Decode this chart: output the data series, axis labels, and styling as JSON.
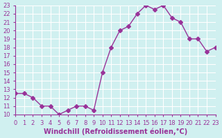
{
  "x": [
    0,
    1,
    2,
    3,
    4,
    5,
    6,
    7,
    8,
    9,
    10,
    11,
    12,
    13,
    14,
    15,
    16,
    17,
    18,
    19,
    20,
    21,
    22,
    23
  ],
  "y": [
    12.5,
    12.5,
    12.0,
    11.0,
    11.0,
    10.0,
    10.5,
    11.0,
    11.0,
    10.5,
    15.0,
    18.0,
    20.0,
    20.5,
    22.0,
    23.0,
    22.5,
    23.0,
    21.5,
    21.0,
    19.0,
    19.0,
    17.5,
    18.0
  ],
  "line_color": "#993399",
  "marker": "D",
  "marker_size": 3,
  "bg_color": "#d0f0f0",
  "grid_color": "#ffffff",
  "xlabel": "Windchill (Refroidissement éolien,°C)",
  "ylim": [
    10,
    23
  ],
  "xlim": [
    0,
    23
  ],
  "yticks": [
    10,
    11,
    12,
    13,
    14,
    15,
    16,
    17,
    18,
    19,
    20,
    21,
    22,
    23
  ],
  "xticks": [
    0,
    1,
    2,
    3,
    4,
    5,
    6,
    7,
    8,
    9,
    10,
    11,
    12,
    13,
    14,
    15,
    16,
    17,
    18,
    19,
    20,
    21,
    22,
    23
  ],
  "tick_fontsize": 6,
  "xlabel_fontsize": 7,
  "label_color": "#993399",
  "axis_color": "#993399"
}
